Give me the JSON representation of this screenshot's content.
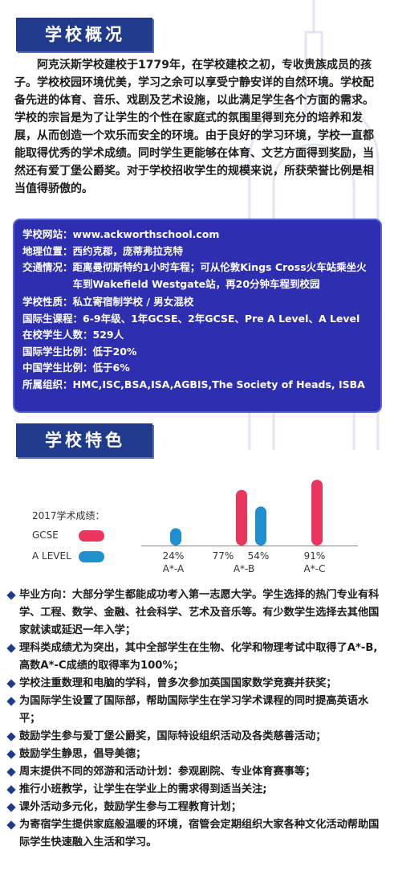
{
  "section1": {
    "title": "学校概况"
  },
  "intro_text": "阿克沃斯学校建校于1779年，在学校建校之初，专收贵族成员的孩子。学校校园环境优美，学习之余可以享受宁静安详的自然环境。学校配备先进的体育、音乐、戏剧及艺术设施，以此满足学生各个方面的需求。学校的宗旨是为了让学生的个性在家庭式的氛围里得到充分的培养和发展，从而创造一个欢乐而安全的环境。由于良好的学习环境，学校一直都能取得优秀的学术成绩。同时学生更能够在体育、文艺方面得到奖励，当然还有爱丁堡公爵奖。对于学校招收学生的规模来说，所获荣誉比例是相当值得骄傲的。",
  "info": [
    {
      "label": "学校网站：",
      "value": "www.ackworthschool.com"
    },
    {
      "label": "地理位置：",
      "value": "西约克郡，庞蒂弗拉克特"
    },
    {
      "label": "交通情况：",
      "value": "距离曼彻斯特约1小时车程；可从伦敦Kings Cross火车站乘坐火车到Wakefield Westgate站，再20分钟车程到校园"
    },
    {
      "label": "学校性质：",
      "value": "私立寄宿制学校 / 男女混校"
    },
    {
      "label": "国际生课程：",
      "value": "6-9年级、1年GCSE、2年GCSE、Pre A Level、A Level"
    },
    {
      "label": "在校学生人数：",
      "value": "529人"
    },
    {
      "label": "国际学生比例：",
      "value": "低于20%"
    },
    {
      "label": "中国学生比例：",
      "value": "低于6%"
    },
    {
      "label": "所属组织：",
      "value": "HMC,ISC,BSA,ISA,AGBIS,The Society of Heads, ISBA"
    }
  ],
  "section2": {
    "title": "学校特色"
  },
  "chart_data": {
    "type": "bar",
    "title": "2017学术成绩：",
    "categories": [
      "A*-A",
      "A*-B",
      "A*-C"
    ],
    "series": [
      {
        "name": "GCSE",
        "values": [
          null,
          77,
          91
        ],
        "color": "#e8365f"
      },
      {
        "name": "A LEVEL",
        "values": [
          24,
          54,
          null
        ],
        "color": "#1f8fd0"
      }
    ],
    "value_labels": [
      "24%",
      "77%",
      "54%",
      "91%"
    ],
    "ylim": [
      0,
      100
    ]
  },
  "bullets": [
    "毕业方向：大部分学生都能成功考入第一志愿大学。学生选择的热门专业有科学、工程、数学、金融、社会科学、艺术及音乐等。有少数学生选择去其他国家就读或延迟一年入学；",
    "理科类成绩尤为突出，其中全部学生在生物、化学和物理考试中取得了A*-B, 高数A*-C成绩的取得率为100%；",
    "学校注重数理和电脑的学科，曾多次参加英国国家数学竞赛并获奖；",
    "为国际学生设置了国际部，帮助国际学生在学习学术课程的同时提高英语水平；",
    "鼓励学生参与爱丁堡公爵奖，国际特设组织活动及各类慈善活动；",
    "鼓励学生静思，倡导美德；",
    "周末提供不同的郊游和活动计划：参观剧院、专业体育赛事等；",
    "推行小班教学，让学生在学业上的需求得到适当关注;",
    "课外活动多元化，鼓励学生参与工程教育计划；",
    "为寄宿学生提供家庭般温暖的环境，宿管会定期组织大家各种文化活动帮助国际学生快速融入生活和学习。"
  ]
}
